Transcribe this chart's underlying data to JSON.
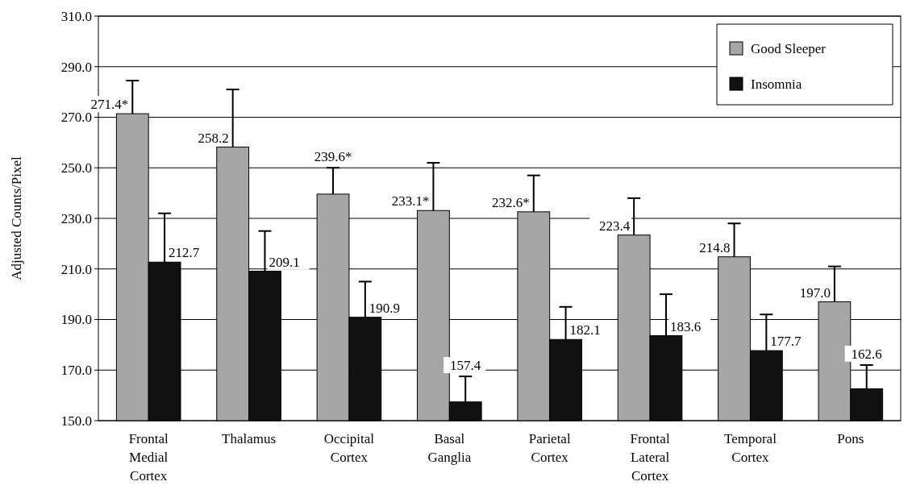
{
  "chart_data": {
    "type": "bar",
    "ylabel": "Adjusted Counts/Pixel",
    "categories": [
      "Frontal Medial Cortex",
      "Thalamus",
      "Occipital Cortex",
      "Basal Ganglia",
      "Parietal Cortex",
      "Frontal Lateral Cortex",
      "Temporal Cortex",
      "Pons"
    ],
    "series": [
      {
        "name": "Good Sleeper",
        "color": "#a6a6a6",
        "values": [
          271.4,
          258.2,
          239.6,
          233.1,
          232.6,
          223.4,
          214.8,
          197.0
        ],
        "value_labels": [
          "271.4*",
          "258.2",
          "239.6*",
          "233.1*",
          "232.6*",
          "223.4",
          "214.8",
          "197.0"
        ],
        "errors": [
          [
            271.4,
            284.5
          ],
          [
            258.2,
            281
          ],
          [
            239.6,
            250
          ],
          [
            233.1,
            252
          ],
          [
            232.6,
            247
          ],
          [
            223.4,
            238
          ],
          [
            214.8,
            228
          ],
          [
            197.0,
            211
          ]
        ]
      },
      {
        "name": "Insomnia",
        "color": "#111111",
        "values": [
          212.7,
          209.1,
          190.9,
          157.4,
          182.1,
          183.6,
          177.7,
          162.6
        ],
        "value_labels": [
          "212.7",
          "209.1",
          "190.9",
          "157.4",
          "182.1",
          "183.6",
          "177.7",
          "162.6"
        ],
        "errors": [
          [
            212.7,
            232
          ],
          [
            209.1,
            225
          ],
          [
            190.9,
            205
          ],
          [
            157.4,
            167.5
          ],
          [
            182.1,
            195
          ],
          [
            183.6,
            200
          ],
          [
            177.7,
            192
          ],
          [
            162.6,
            172
          ]
        ]
      }
    ],
    "ylim": [
      150,
      310
    ],
    "yticks": [
      {
        "value": 150,
        "label": "150.0"
      },
      {
        "value": 170,
        "label": "170.0"
      },
      {
        "value": 190,
        "label": "190.0"
      },
      {
        "value": 210,
        "label": "210.0"
      },
      {
        "value": 230,
        "label": "230.0"
      },
      {
        "value": 250,
        "label": "250.0"
      },
      {
        "value": 270,
        "label": "270.0"
      },
      {
        "value": 290,
        "label": "290.0"
      },
      {
        "value": 310,
        "label": "310.0"
      }
    ],
    "grid": "y",
    "legend": "top right"
  }
}
